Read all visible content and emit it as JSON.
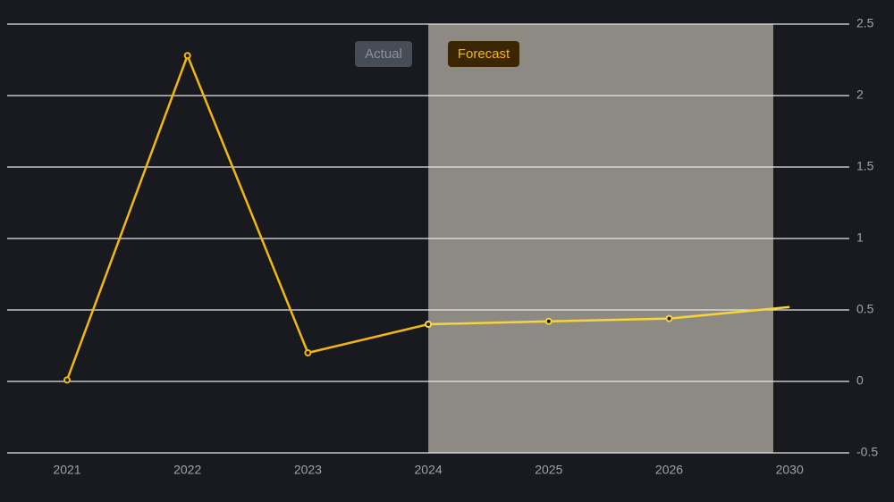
{
  "chart_data": {
    "type": "line",
    "categories": [
      "2021",
      "2022",
      "2023",
      "2024",
      "2025",
      "2026",
      "2030"
    ],
    "series": [
      {
        "name": "Actual",
        "color": "#f0b90b",
        "values": [
          0.01,
          2.28,
          0.2,
          0.4,
          null,
          null,
          null
        ]
      },
      {
        "name": "Forecast",
        "color": "#f8d33a",
        "values": [
          null,
          null,
          null,
          0.4,
          0.42,
          0.44,
          0.52
        ]
      }
    ],
    "ylim": [
      -0.5,
      2.5
    ],
    "yticks": [
      2.5,
      2,
      1.5,
      1,
      0.5,
      0,
      -0.5
    ],
    "grid": true
  }
}
